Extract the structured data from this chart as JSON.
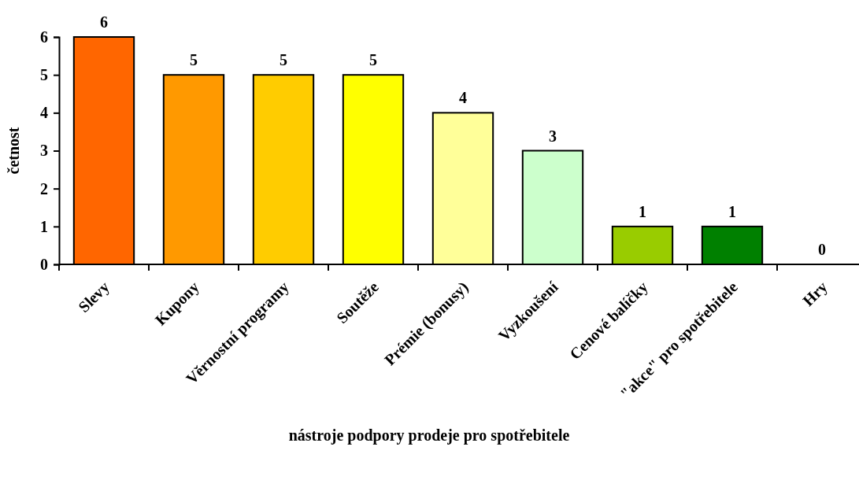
{
  "chart_data": {
    "type": "bar",
    "xlabel": "nástroje podpory prodeje pro spotřebitele",
    "ylabel": "četnost",
    "categories": [
      "Slevy",
      "Kupony",
      "Věrnostní programy",
      "Soutěže",
      "Prémie (bonusy)",
      "Vyzkoušení",
      "Cenové balíčky",
      "\"akce\" pro spotřebitele",
      "Hry"
    ],
    "values": [
      6,
      5,
      5,
      5,
      4,
      3,
      1,
      1,
      0
    ],
    "colors": [
      "#ff6600",
      "#ff9900",
      "#ffcc00",
      "#ffff00",
      "#ffff99",
      "#ccffcc",
      "#99cc00",
      "#008000",
      "#006600"
    ],
    "ylim": [
      0,
      6
    ],
    "yticks": [
      0,
      1,
      2,
      3,
      4,
      5,
      6
    ],
    "grid": false,
    "data_labels": true
  }
}
